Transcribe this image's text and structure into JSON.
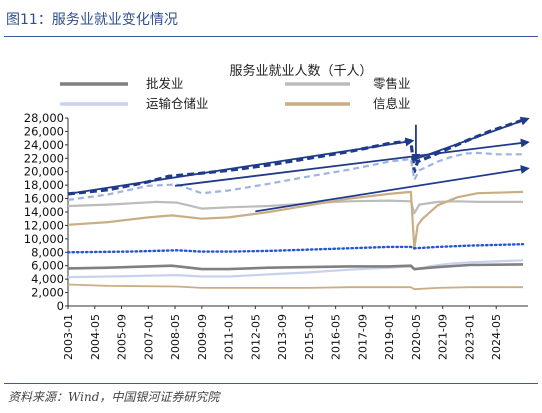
{
  "figure_label": "图11：服务业就业变化情况",
  "source": "资料来源：Wind，中国银河证券研究院",
  "colors": {
    "title": "#2f4f8f",
    "wholesale": "#808080",
    "retail": "#bcbcbc",
    "transport": "#c9d2ec",
    "information": "#c9ae84",
    "total_dashed": "#1f3a8a",
    "blue_light_dashed": "#9fb3e3",
    "dotted": "#2456d6",
    "arrow": "#1f3a8a"
  },
  "chart_data": {
    "type": "line",
    "title": "服务业就业人数（千人）",
    "ylim": [
      0,
      28000
    ],
    "ytick_step": 2000,
    "x_start": "2003-01",
    "x_end": "2025-12",
    "x_ticks": [
      "2003-01",
      "2004-05",
      "2005-09",
      "2007-01",
      "2008-05",
      "2009-09",
      "2011-01",
      "2012-05",
      "2013-09",
      "2015-01",
      "2016-05",
      "2017-09",
      "2019-01",
      "2020-05",
      "2021-09",
      "2023-01",
      "2024-05"
    ],
    "legend": [
      {
        "name": "批发业",
        "key": "wholesale"
      },
      {
        "name": "零售业",
        "key": "retail"
      },
      {
        "name": "运输仓储业",
        "key": "transport"
      },
      {
        "name": "信息业",
        "key": "information"
      }
    ],
    "series": [
      {
        "name": "",
        "key": "total_dashed",
        "style": "dashed-bold",
        "points": [
          [
            "2003-01",
            16700
          ],
          [
            "2005-01",
            17300
          ],
          [
            "2007-01",
            18500
          ],
          [
            "2008-01",
            19300
          ],
          [
            "2009-06",
            19700
          ],
          [
            "2011-01",
            20200
          ],
          [
            "2013-01",
            21000
          ],
          [
            "2015-01",
            22000
          ],
          [
            "2017-01",
            23000
          ],
          [
            "2019-01",
            24200
          ],
          [
            "2020-02",
            24600
          ],
          [
            "2020-04",
            20000
          ],
          [
            "2020-06",
            21500
          ],
          [
            "2021-01",
            22200
          ],
          [
            "2022-01",
            23500
          ],
          [
            "2023-01",
            24800
          ],
          [
            "2024-01",
            26000
          ],
          [
            "2025-01",
            27000
          ],
          [
            "2025-09",
            27700
          ]
        ]
      },
      {
        "name": "",
        "key": "blue_light_dashed",
        "style": "dashed",
        "points": [
          [
            "2003-01",
            15800
          ],
          [
            "2005-01",
            16600
          ],
          [
            "2007-01",
            17900
          ],
          [
            "2008-06",
            18100
          ],
          [
            "2009-09",
            16800
          ],
          [
            "2011-01",
            17200
          ],
          [
            "2013-01",
            18200
          ],
          [
            "2015-01",
            19300
          ],
          [
            "2017-01",
            20300
          ],
          [
            "2019-01",
            21500
          ],
          [
            "2020-02",
            21900
          ],
          [
            "2020-04",
            18800
          ],
          [
            "2020-07",
            20200
          ],
          [
            "2021-06",
            21500
          ],
          [
            "2022-01",
            22100
          ],
          [
            "2022-10",
            22700
          ],
          [
            "2023-06",
            22800
          ],
          [
            "2024-06",
            22600
          ],
          [
            "2025-09",
            22600
          ]
        ]
      },
      {
        "name": "零售业",
        "key": "retail",
        "style": "solid",
        "points": [
          [
            "2003-01",
            14900
          ],
          [
            "2005-01",
            15100
          ],
          [
            "2007-06",
            15500
          ],
          [
            "2008-06",
            15400
          ],
          [
            "2009-09",
            14500
          ],
          [
            "2011-01",
            14700
          ],
          [
            "2013-01",
            14900
          ],
          [
            "2015-01",
            15300
          ],
          [
            "2017-01",
            15600
          ],
          [
            "2019-01",
            15700
          ],
          [
            "2020-02",
            15600
          ],
          [
            "2020-04",
            13800
          ],
          [
            "2020-07",
            15100
          ],
          [
            "2021-06",
            15500
          ],
          [
            "2022-06",
            15600
          ],
          [
            "2023-06",
            15500
          ],
          [
            "2025-09",
            15500
          ]
        ]
      },
      {
        "name": "信息业",
        "key": "information",
        "style": "solid",
        "points": [
          [
            "2003-01",
            12100
          ],
          [
            "2005-01",
            12500
          ],
          [
            "2007-01",
            13200
          ],
          [
            "2008-03",
            13500
          ],
          [
            "2009-09",
            13000
          ],
          [
            "2011-01",
            13200
          ],
          [
            "2013-01",
            14000
          ],
          [
            "2015-01",
            15000
          ],
          [
            "2017-01",
            16000
          ],
          [
            "2019-01",
            16700
          ],
          [
            "2020-02",
            17000
          ],
          [
            "2020-04",
            8500
          ],
          [
            "2020-06",
            12000
          ],
          [
            "2020-09",
            13000
          ],
          [
            "2021-06",
            15000
          ],
          [
            "2022-06",
            16200
          ],
          [
            "2023-06",
            16800
          ],
          [
            "2025-09",
            17000
          ]
        ]
      },
      {
        "name": "",
        "key": "dotted",
        "style": "dotted",
        "points": [
          [
            "2003-01",
            8000
          ],
          [
            "2006-01",
            8100
          ],
          [
            "2008-06",
            8300
          ],
          [
            "2009-09",
            8100
          ],
          [
            "2011-01",
            8100
          ],
          [
            "2013-01",
            8200
          ],
          [
            "2015-01",
            8400
          ],
          [
            "2017-01",
            8600
          ],
          [
            "2019-01",
            8800
          ],
          [
            "2020-02",
            8800
          ],
          [
            "2020-04",
            8600
          ],
          [
            "2021-06",
            8800
          ],
          [
            "2023-01",
            9000
          ],
          [
            "2025-09",
            9200
          ]
        ]
      },
      {
        "name": "运输仓储业",
        "key": "transport",
        "style": "solid",
        "points": [
          [
            "2003-01",
            4300
          ],
          [
            "2005-01",
            4400
          ],
          [
            "2008-06",
            4600
          ],
          [
            "2009-09",
            4400
          ],
          [
            "2011-01",
            4400
          ],
          [
            "2013-01",
            4700
          ],
          [
            "2015-01",
            5000
          ],
          [
            "2017-01",
            5400
          ],
          [
            "2019-01",
            5700
          ],
          [
            "2020-02",
            5900
          ],
          [
            "2020-04",
            5400
          ],
          [
            "2021-01",
            5900
          ],
          [
            "2022-01",
            6300
          ],
          [
            "2023-01",
            6500
          ],
          [
            "2025-09",
            6800
          ]
        ]
      },
      {
        "name": "批发业",
        "key": "wholesale",
        "style": "solid-thick",
        "points": [
          [
            "2003-01",
            5600
          ],
          [
            "2005-01",
            5700
          ],
          [
            "2008-03",
            6000
          ],
          [
            "2009-09",
            5500
          ],
          [
            "2011-01",
            5500
          ],
          [
            "2013-01",
            5700
          ],
          [
            "2015-01",
            5800
          ],
          [
            "2017-01",
            5900
          ],
          [
            "2019-01",
            5900
          ],
          [
            "2020-02",
            6000
          ],
          [
            "2020-04",
            5500
          ],
          [
            "2021-06",
            5800
          ],
          [
            "2023-01",
            6100
          ],
          [
            "2025-09",
            6200
          ]
        ]
      },
      {
        "name": "",
        "key": "information",
        "style": "solid-light",
        "points": [
          [
            "2003-01",
            3200
          ],
          [
            "2005-01",
            3000
          ],
          [
            "2008-06",
            2900
          ],
          [
            "2009-09",
            2700
          ],
          [
            "2011-01",
            2700
          ],
          [
            "2013-01",
            2700
          ],
          [
            "2015-01",
            2700
          ],
          [
            "2017-01",
            2800
          ],
          [
            "2019-01",
            2800
          ],
          [
            "2020-02",
            2800
          ],
          [
            "2020-04",
            2500
          ],
          [
            "2021-06",
            2700
          ],
          [
            "2023-01",
            2800
          ],
          [
            "2025-09",
            2800
          ]
        ]
      }
    ],
    "arrows": [
      {
        "from": [
          "2003-01",
          16700
        ],
        "to": [
          "2020-03",
          24600
        ]
      },
      {
        "from": [
          "2020-06",
          22000
        ],
        "to": [
          "2025-12",
          27900
        ]
      },
      {
        "from": [
          "2008-05",
          17900
        ],
        "to": [
          "2025-12",
          24400
        ]
      },
      {
        "from": [
          "2012-05",
          14100
        ],
        "to": [
          "2025-12",
          20500
        ]
      }
    ],
    "down_arrow": {
      "x": "2020-05",
      "from": 27000,
      "to": 21600
    }
  }
}
